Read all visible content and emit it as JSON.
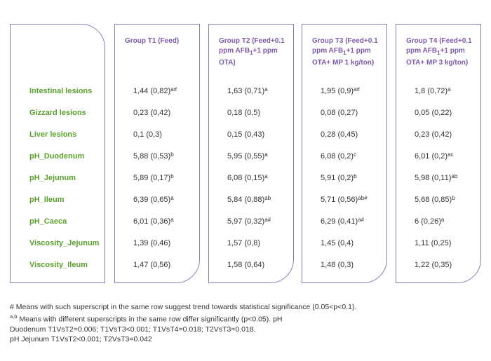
{
  "columns": [
    {
      "line1": "Group T1 (Feed)",
      "line2": "",
      "sub": "",
      "line2b": "",
      "line3": ""
    },
    {
      "line1": "Group T2 (Feed+0.1",
      "line2": "ppm AFB",
      "sub": "1",
      "line2b": "+1 ppm",
      "line3": "OTA)"
    },
    {
      "line1": "Group T3 (Feed+0.1",
      "line2": "ppm AFB",
      "sub": "1",
      "line2b": "+1 ppm",
      "line3": "OTA+ MP 1 kg/ton)"
    },
    {
      "line1": "Group T4 (Feed+0.1",
      "line2": "ppm AFB",
      "sub": "1",
      "line2b": "+1 ppm",
      "line3": "OTA+ MP 3 kg/ton)"
    }
  ],
  "rows": [
    {
      "label": "Intestinal lesions",
      "cells": [
        {
          "v": "1,44 (0,82)",
          "s": "a#"
        },
        {
          "v": "1,63 (0,71)",
          "s": "a"
        },
        {
          "v": "1,95 (0,9)",
          "s": "a#"
        },
        {
          "v": "1,8 (0,72)",
          "s": "a"
        }
      ]
    },
    {
      "label": "Gizzard lesions",
      "cells": [
        {
          "v": "0,23 (0,42)",
          "s": ""
        },
        {
          "v": "0,18 (0,5)",
          "s": ""
        },
        {
          "v": "0,08 (0,27)",
          "s": ""
        },
        {
          "v": "0,05 (0,22)",
          "s": ""
        }
      ]
    },
    {
      "label": "Liver lesions",
      "cells": [
        {
          "v": "0,1 (0,3)",
          "s": ""
        },
        {
          "v": "0,15 (0,43)",
          "s": ""
        },
        {
          "v": "0,28 (0,45)",
          "s": ""
        },
        {
          "v": "0,23 (0,42)",
          "s": ""
        }
      ]
    },
    {
      "label": "pH_Duodenum",
      "cells": [
        {
          "v": "5,88 (0,53)",
          "s": "b"
        },
        {
          "v": "5,95 (0,55)",
          "s": "a"
        },
        {
          "v": "6,08 (0,2)",
          "s": "c"
        },
        {
          "v": "6,01 (0,2)",
          "s": "ac"
        }
      ]
    },
    {
      "label": "pH_Jejunum",
      "cells": [
        {
          "v": "5,89 (0,17)",
          "s": "b"
        },
        {
          "v": "6,08 (0,15)",
          "s": "a"
        },
        {
          "v": "5,91 (0,2)",
          "s": "b"
        },
        {
          "v": "5,98 (0,11)",
          "s": "ab"
        }
      ]
    },
    {
      "label": "pH_Ileum",
      "cells": [
        {
          "v": "6,39 (0,65)",
          "s": "a"
        },
        {
          "v": "5,84 (0,88)",
          "s": "ab"
        },
        {
          "v": "5,71 (0,56)",
          "s": "ab#"
        },
        {
          "v": "5,68 (0,85)",
          "s": "b"
        }
      ]
    },
    {
      "label": "pH_Caeca",
      "cells": [
        {
          "v": "6,01 (0,36)",
          "s": "a"
        },
        {
          "v": "5,97 (0,32)",
          "s": "a#"
        },
        {
          "v": "6,29 (0,41)",
          "s": "a#"
        },
        {
          "v": "6 (0,26)",
          "s": "a"
        }
      ]
    },
    {
      "label": "Viscosity_Jejunum",
      "cells": [
        {
          "v": "1,39 (0,46)",
          "s": ""
        },
        {
          "v": "1,57 (0,8)",
          "s": ""
        },
        {
          "v": "1,45 (0,4)",
          "s": ""
        },
        {
          "v": "1,11 (0,25)",
          "s": ""
        }
      ]
    },
    {
      "label": "Viscosity_Ileum",
      "cells": [
        {
          "v": "1,47 (0,56)",
          "s": ""
        },
        {
          "v": "1,58 (0,64)",
          "s": ""
        },
        {
          "v": "1,48 (0,3)",
          "s": ""
        },
        {
          "v": "1,22 (0,35)",
          "s": ""
        }
      ]
    }
  ],
  "notes": {
    "line1": "# Means with such superscript in the same row suggest trend towards statistical significance (0.05<p<0.1).",
    "line2_sup": "a,b",
    "line2": " Means with different superscripts in the same row differ significantly (p<0.05). pH",
    "line3": "Duodenum T1VsT2=0.006; T1VsT3<0.001; T1VsT4=0.018; T2VsT3=0.018.",
    "line4": "pH Jejunum T1VsT2<0.001; T2VsT3=0.042"
  },
  "colors": {
    "border": "#8f79b5",
    "header": "#7c5aa8",
    "label": "#5aa02c",
    "text": "#333333"
  }
}
